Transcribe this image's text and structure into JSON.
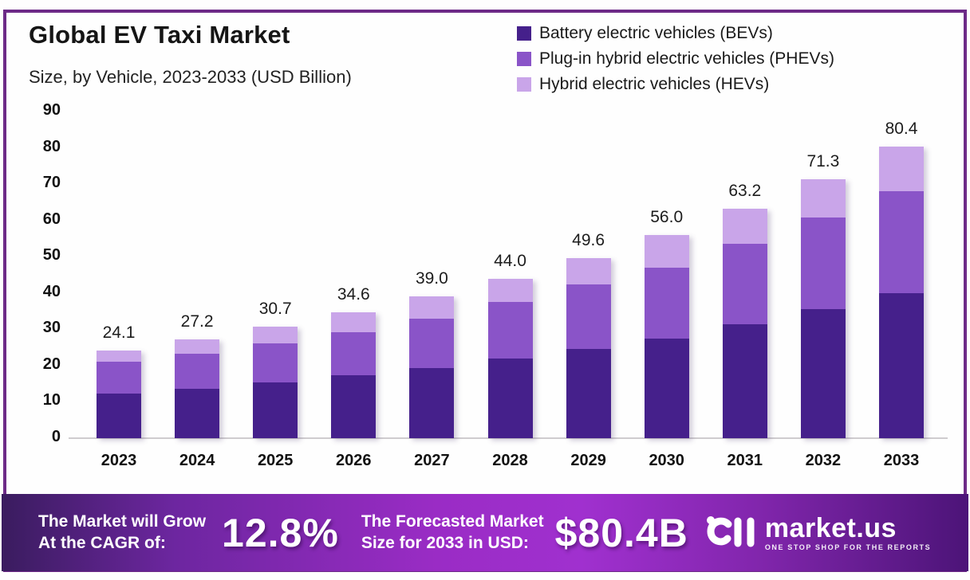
{
  "header": {
    "title": "Global EV Taxi Market",
    "subtitle": "Size, by Vehicle, 2023-2033 (USD Billion)"
  },
  "legend": {
    "items": [
      {
        "label": "Battery electric vehicles (BEVs)",
        "color": "#45208b"
      },
      {
        "label": "Plug-in hybrid electric vehicles (PHEVs)",
        "color": "#8a54c8"
      },
      {
        "label": "Hybrid electric vehicles (HEVs)",
        "color": "#c9a5e9"
      }
    ]
  },
  "chart_data": {
    "type": "bar",
    "stacked": true,
    "title": "Global EV Taxi Market Size, by Vehicle, 2023-2033 (USD Billion)",
    "categories": [
      "2023",
      "2024",
      "2025",
      "2026",
      "2027",
      "2028",
      "2029",
      "2030",
      "2031",
      "2032",
      "2033"
    ],
    "series": [
      {
        "name": "Battery electric vehicles (BEVs)",
        "color": "#45208b",
        "values": [
          12.2,
          13.7,
          15.3,
          17.3,
          19.3,
          22.0,
          24.6,
          27.4,
          31.3,
          35.6,
          39.9
        ]
      },
      {
        "name": "Plug-in hybrid electric vehicles (PHEVs)",
        "color": "#8a54c8",
        "values": [
          8.8,
          9.5,
          10.8,
          11.8,
          13.6,
          15.6,
          17.8,
          19.6,
          22.2,
          25.2,
          28.2
        ]
      },
      {
        "name": "Hybrid electric vehicles (HEVs)",
        "color": "#c9a5e9",
        "values": [
          3.1,
          4.0,
          4.6,
          5.5,
          6.1,
          6.4,
          7.2,
          9.0,
          9.7,
          10.5,
          12.3
        ]
      }
    ],
    "totals": [
      "24.1",
      "27.2",
      "30.7",
      "34.6",
      "39.0",
      "44.0",
      "49.6",
      "56.0",
      "63.2",
      "71.3",
      "80.4"
    ],
    "xlabel": "",
    "ylabel": "USD Billion",
    "ylim": [
      0,
      90
    ],
    "yticks": [
      0,
      10,
      20,
      30,
      40,
      50,
      60,
      70,
      80,
      90
    ],
    "grid": false,
    "legend_position": "top-right"
  },
  "footer": {
    "cagr_label_line1": "The Market will Grow",
    "cagr_label_line2": "At the CAGR of:",
    "cagr_value": "12.8%",
    "forecast_label_line1": "The Forecasted Market",
    "forecast_label_line2": "Size for 2033 in USD:",
    "forecast_value": "$80.4B",
    "brand": {
      "name": "market.us",
      "tagline": "ONE STOP SHOP FOR THE REPORTS"
    }
  },
  "colors": {
    "frame_border": "#6d2a87",
    "bev": "#45208b",
    "phev": "#8a54c8",
    "hev": "#c9a5e9",
    "banner_left": "#3a1c5f",
    "banner_center": "#a030cf",
    "banner_right": "#4c1478",
    "axis_line": "#cfcccf",
    "text": "#151515"
  }
}
